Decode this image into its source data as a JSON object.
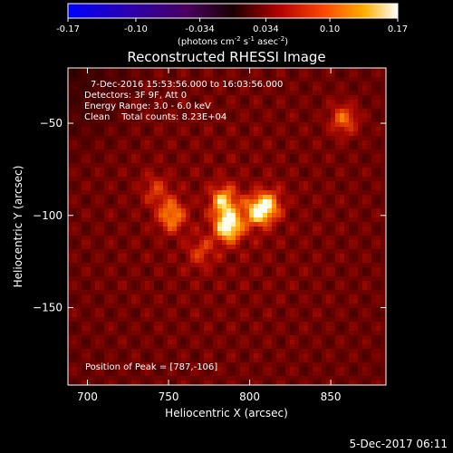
{
  "chart_data": {
    "type": "heatmap",
    "title": "Reconstructed RHESSI Image",
    "xlabel": "Heliocentric X (arcsec)",
    "ylabel": "Heliocentric Y (arcsec)",
    "xlim": [
      688,
      884
    ],
    "ylim": [
      -192,
      -20
    ],
    "x_ticks": [
      700,
      750,
      800,
      850
    ],
    "y_ticks": [
      -50,
      -100,
      -150
    ],
    "colorbar": {
      "min": -0.17,
      "max": 0.17,
      "ticks": [
        "-0.17",
        "-0.10",
        "-0.034",
        "0.034",
        "0.10",
        "0.17"
      ],
      "unit_label": "(photons cm",
      "unit_exp1": "-2",
      "unit_mid": " s",
      "unit_exp2": "-1",
      "unit_mid2": " asec",
      "unit_exp3": "-2",
      "unit_end": ")"
    },
    "annotations": {
      "time_range": "7-Dec-2016 15:53:56.000 to 16:03:56.000",
      "detectors": "Detectors: 3F 9F, Att 0",
      "energy": "Energy Range: 3.0 - 6.0 keV",
      "clean": "Clean    Total counts: 8.23E+04",
      "peak": "Position of Peak = [787,-106]"
    },
    "sources": [
      {
        "x": 787,
        "y": -106,
        "intensity": 0.17
      },
      {
        "x": 805,
        "y": -98,
        "intensity": 0.13
      },
      {
        "x": 784,
        "y": -92,
        "intensity": 0.12
      },
      {
        "x": 752,
        "y": -100,
        "intensity": 0.11
      },
      {
        "x": 812,
        "y": -94,
        "intensity": 0.09
      },
      {
        "x": 858,
        "y": -48,
        "intensity": 0.09
      },
      {
        "x": 770,
        "y": -120,
        "intensity": 0.06
      },
      {
        "x": 742,
        "y": -86,
        "intensity": 0.06
      }
    ]
  },
  "footer": {
    "date": "5-Dec-2017 06:11"
  }
}
